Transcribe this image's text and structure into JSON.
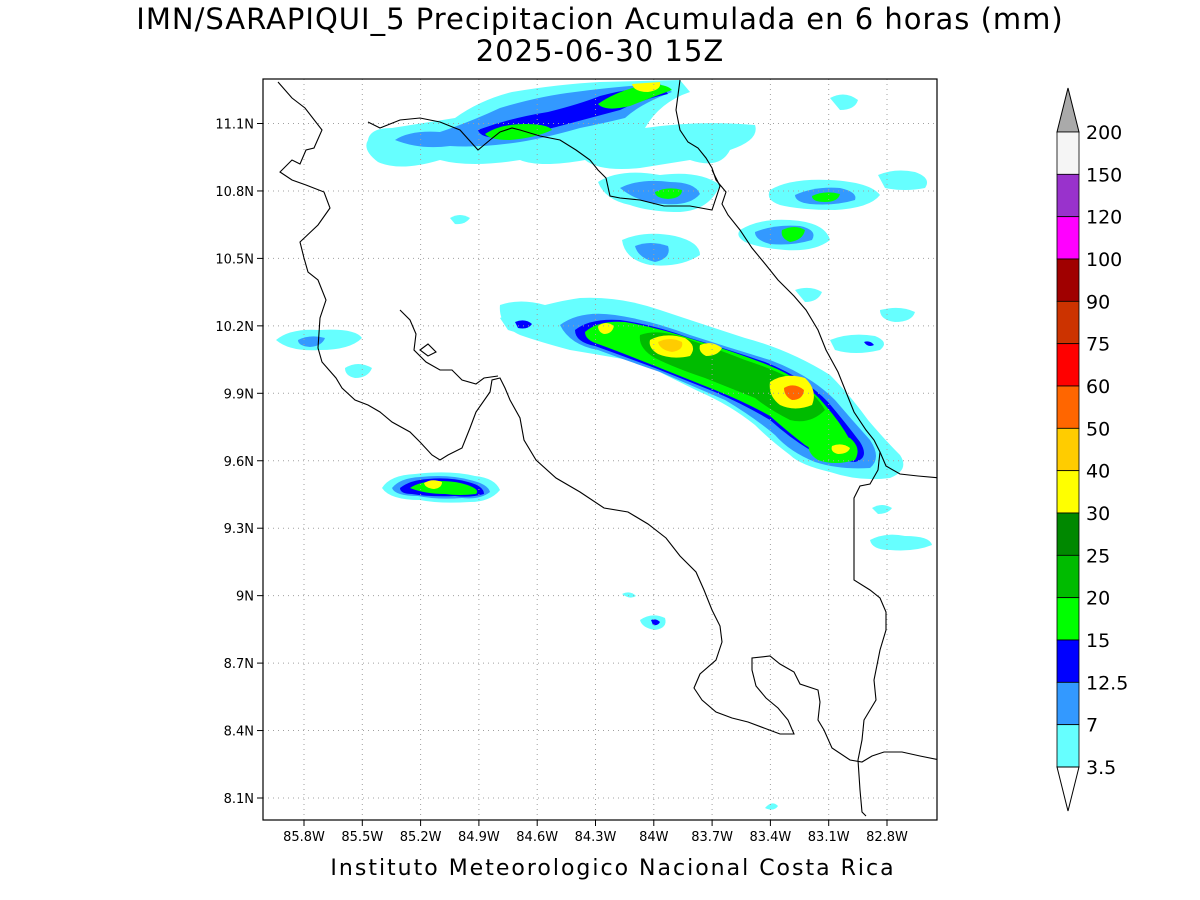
{
  "title": {
    "line1": "IMN/SARAPIQUI_5 Precipitacion Acumulada en 6 horas (mm)",
    "line2": "2025-06-30 15Z"
  },
  "credit": "Instituto Meteorologico Nacional Costa Rica",
  "map": {
    "lon_range": [
      -86.0,
      -82.6
    ],
    "lat_range": [
      8.0,
      11.3
    ],
    "lat_ticks": [
      "11.1N",
      "10.8N",
      "10.5N",
      "10.2N",
      "9.9N",
      "9.6N",
      "9.3N",
      "9N",
      "8.7N",
      "8.4N",
      "8.1N"
    ],
    "lon_ticks": [
      "85.8W",
      "85.5W",
      "85.2W",
      "84.9W",
      "84.6W",
      "84.3W",
      "84W",
      "83.7W",
      "83.4W",
      "83.1W",
      "82.8W"
    ],
    "grid": "dotted"
  },
  "colorbar": {
    "labels": [
      "200",
      "150",
      "120",
      "100",
      "90",
      "75",
      "60",
      "50",
      "40",
      "30",
      "25",
      "20",
      "15",
      "12.5",
      "7",
      "3.5"
    ],
    "colors": [
      "#f5f5f5",
      "#9932cc",
      "#ff00ff",
      "#a00000",
      "#cc3300",
      "#ff0000",
      "#ff6600",
      "#ffcc00",
      "#ffff00",
      "#008800",
      "#00bb00",
      "#00ff00",
      "#0000ff",
      "#3399ff",
      "#66ffff"
    ],
    "over_color": "#aaaaaa",
    "under_color": "#ffffff"
  }
}
